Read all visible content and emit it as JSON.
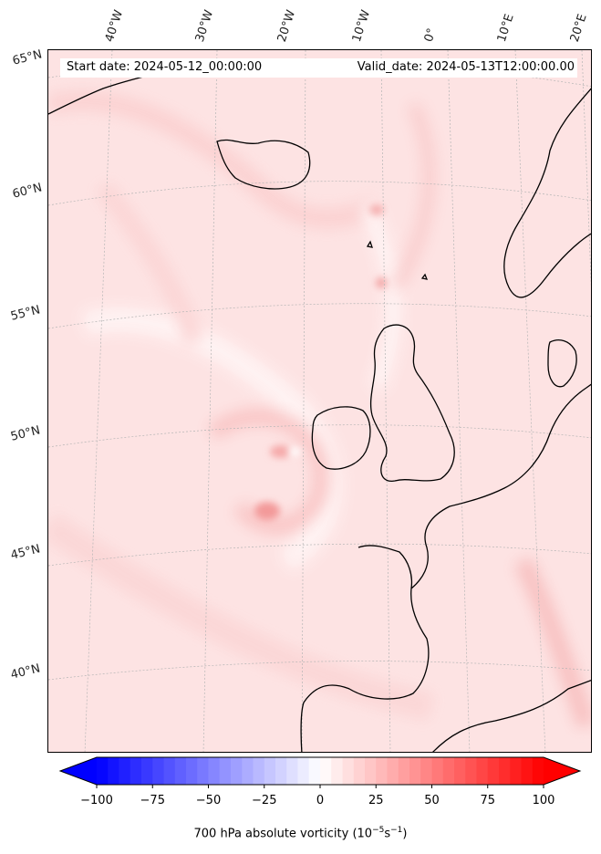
{
  "map": {
    "start_date": "Start date: 2024-05-12_00:00:00",
    "valid_date": "Valid_date: 2024-05-13T12:00:00.00",
    "lon_labels": [
      "40°W",
      "30°W",
      "20°W",
      "10°W",
      "0°",
      "10°E",
      "20°E"
    ],
    "lat_labels": [
      "65°N",
      "60°N",
      "55°N",
      "50°N",
      "45°N",
      "40°N"
    ],
    "region": "North Atlantic and Western Europe"
  },
  "colorbar": {
    "label_prefix": "700 hPa absolute vorticity (10",
    "label_exp1": "−5",
    "label_mid": "s",
    "label_exp2": "−1",
    "label_suffix": ")",
    "ticks": [
      "−100",
      "−75",
      "−50",
      "−25",
      "0",
      "25",
      "50",
      "75",
      "100"
    ],
    "range": [
      -100,
      100
    ],
    "colormap": "bwr",
    "colors": {
      "negative": "#0000ff",
      "zero": "#ffffff",
      "positive": "#ff0000"
    }
  }
}
